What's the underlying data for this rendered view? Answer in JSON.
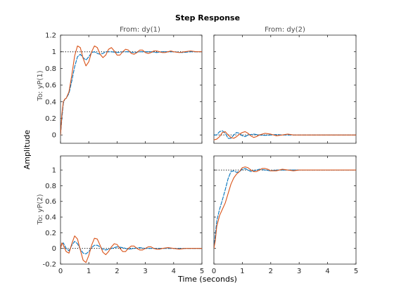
{
  "chart_data": {
    "type": "line",
    "title": "Step Response",
    "xlabel": "Time (seconds)",
    "ylabel": "Amplitude",
    "column_titles": [
      "From: dy(1)",
      "From: dy(2)"
    ],
    "row_titles": [
      "To: yP(1)",
      "To: yP(2)"
    ],
    "xlim": [
      0,
      5
    ],
    "x_ticks": [
      0,
      1,
      2,
      3,
      4,
      5
    ],
    "grid": false,
    "rows": [
      {
        "ylim": [
          -0.1,
          1.2
        ],
        "y_ticks": [
          0,
          0.2,
          0.4,
          0.6,
          0.8,
          1,
          1.2
        ],
        "y_tick_labels": [
          "0",
          "0.2",
          "0.4",
          "0.6",
          "0.8",
          "1",
          "1.2"
        ]
      },
      {
        "ylim": [
          -0.2,
          1.18
        ],
        "y_ticks": [
          -0.2,
          0,
          0.2,
          0.4,
          0.6,
          0.8,
          1
        ],
        "y_tick_labels": [
          "-0.2",
          "0",
          "0.2",
          "0.4",
          "0.6",
          "0.8",
          "1"
        ]
      }
    ],
    "reference_levels": [
      [
        1,
        0
      ],
      [
        0,
        1
      ]
    ],
    "series_colors": [
      "#0072bd",
      "#d95319"
    ],
    "reference_color": "#000000",
    "panels": [
      {
        "row": 0,
        "col": 0,
        "series": [
          {
            "x": [
              0,
              0.05,
              0.1,
              0.15,
              0.2,
              0.3,
              0.4,
              0.5,
              0.6,
              0.7,
              0.8,
              0.9,
              1.0,
              1.1,
              1.2,
              1.3,
              1.4,
              1.5,
              1.6,
              1.8,
              2.0,
              2.2,
              2.4,
              2.6,
              2.8,
              3.0,
              3.2,
              3.4,
              3.6,
              3.8,
              4.0,
              4.3,
              4.6,
              5.0
            ],
            "y": [
              0.0,
              0.2,
              0.38,
              0.43,
              0.44,
              0.5,
              0.65,
              0.82,
              0.94,
              0.97,
              0.93,
              0.9,
              0.94,
              0.99,
              1.0,
              0.98,
              0.97,
              0.98,
              1.0,
              1.0,
              0.99,
              1.0,
              1.0,
              0.99,
              1.0,
              1.0,
              1.0,
              0.99,
              1.0,
              1.0,
              1.0,
              0.99,
              1.0,
              1.0
            ]
          },
          {
            "x": [
              0,
              0.05,
              0.1,
              0.15,
              0.2,
              0.3,
              0.4,
              0.5,
              0.6,
              0.7,
              0.8,
              0.9,
              1.0,
              1.1,
              1.2,
              1.3,
              1.4,
              1.5,
              1.6,
              1.7,
              1.8,
              1.9,
              2.0,
              2.1,
              2.2,
              2.3,
              2.4,
              2.5,
              2.6,
              2.7,
              2.8,
              2.9,
              3.0,
              3.1,
              3.2,
              3.3,
              3.4,
              3.5,
              3.6,
              3.7,
              3.8,
              3.9,
              4.0,
              4.2,
              4.4,
              4.6,
              4.8,
              5.0
            ],
            "y": [
              0.0,
              0.25,
              0.4,
              0.43,
              0.44,
              0.52,
              0.72,
              0.95,
              1.07,
              1.05,
              0.92,
              0.83,
              0.88,
              1.0,
              1.07,
              1.05,
              0.97,
              0.93,
              0.96,
              1.03,
              1.05,
              1.01,
              0.96,
              0.96,
              1.0,
              1.03,
              1.02,
              0.98,
              0.97,
              0.99,
              1.02,
              1.02,
              0.99,
              0.98,
              0.99,
              1.01,
              1.01,
              1.0,
              0.99,
              0.99,
              1.0,
              1.01,
              1.0,
              0.99,
              1.0,
              1.01,
              1.0,
              1.0
            ]
          }
        ]
      },
      {
        "row": 0,
        "col": 1,
        "series": [
          {
            "x": [
              0,
              0.1,
              0.2,
              0.3,
              0.4,
              0.5,
              0.6,
              0.7,
              0.8,
              0.9,
              1.0,
              1.1,
              1.2,
              1.4,
              1.6,
              1.8,
              2.0,
              2.2,
              2.4,
              2.6,
              2.8,
              3.0,
              3.3,
              3.6,
              4.0,
              4.5,
              5.0
            ],
            "y": [
              0.0,
              0.0,
              0.04,
              0.05,
              0.02,
              -0.04,
              -0.04,
              0.0,
              0.03,
              0.02,
              -0.01,
              -0.02,
              0.0,
              0.01,
              0.0,
              -0.005,
              0.0,
              0.005,
              0.0,
              0.0,
              0.0,
              0.0,
              0.0,
              0.0,
              0.0,
              0.0,
              0.0
            ]
          },
          {
            "x": [
              0,
              0.1,
              0.2,
              0.3,
              0.4,
              0.5,
              0.6,
              0.7,
              0.8,
              0.9,
              1.0,
              1.1,
              1.2,
              1.3,
              1.4,
              1.5,
              1.6,
              1.8,
              2.0,
              2.2,
              2.4,
              2.6,
              2.8,
              3.0,
              3.4,
              3.8,
              4.2,
              4.6,
              5.0
            ],
            "y": [
              -0.06,
              -0.05,
              -0.02,
              0.03,
              0.04,
              0.0,
              -0.03,
              -0.04,
              -0.02,
              0.01,
              0.03,
              0.04,
              0.02,
              -0.01,
              -0.03,
              -0.02,
              0.0,
              0.02,
              0.01,
              -0.01,
              0.0,
              0.01,
              0.0,
              0.0,
              0.0,
              0.0,
              0.0,
              0.0,
              0.0
            ]
          }
        ]
      },
      {
        "row": 1,
        "col": 0,
        "series": [
          {
            "x": [
              0,
              0.05,
              0.1,
              0.2,
              0.3,
              0.4,
              0.5,
              0.6,
              0.7,
              0.8,
              0.9,
              1.0,
              1.1,
              1.2,
              1.3,
              1.4,
              1.5,
              1.6,
              1.8,
              2.0,
              2.2,
              2.4,
              2.6,
              2.8,
              3.0,
              3.3,
              3.6,
              4.0,
              4.5,
              5.0
            ],
            "y": [
              0.0,
              0.06,
              0.07,
              0.0,
              -0.03,
              0.04,
              0.09,
              0.06,
              -0.01,
              -0.06,
              -0.07,
              -0.04,
              0.01,
              0.04,
              0.04,
              0.02,
              -0.01,
              -0.02,
              0.0,
              0.02,
              0.01,
              -0.01,
              0.0,
              0.01,
              0.0,
              0.0,
              0.0,
              0.0,
              0.0,
              0.0
            ]
          },
          {
            "x": [
              0,
              0.05,
              0.1,
              0.2,
              0.3,
              0.4,
              0.5,
              0.6,
              0.7,
              0.8,
              0.9,
              1.0,
              1.1,
              1.2,
              1.3,
              1.4,
              1.5,
              1.6,
              1.7,
              1.8,
              1.9,
              2.0,
              2.1,
              2.2,
              2.3,
              2.4,
              2.5,
              2.6,
              2.7,
              2.8,
              2.9,
              3.0,
              3.1,
              3.2,
              3.3,
              3.4,
              3.5,
              3.6,
              3.8,
              4.0,
              4.2,
              4.4,
              4.6,
              4.8,
              5.0
            ],
            "y": [
              0.0,
              0.07,
              0.04,
              -0.04,
              -0.06,
              0.06,
              0.16,
              0.12,
              -0.02,
              -0.15,
              -0.18,
              -0.09,
              0.04,
              0.13,
              0.12,
              0.04,
              -0.05,
              -0.08,
              -0.04,
              0.02,
              0.06,
              0.05,
              0.0,
              -0.04,
              -0.04,
              0.0,
              0.03,
              0.03,
              0.0,
              -0.02,
              -0.02,
              0.0,
              0.02,
              0.02,
              0.0,
              -0.01,
              -0.01,
              0.0,
              0.01,
              0.0,
              -0.01,
              0.0,
              0.0,
              0.0,
              0.0
            ]
          }
        ]
      },
      {
        "row": 1,
        "col": 1,
        "series": [
          {
            "x": [
              0,
              0.05,
              0.1,
              0.2,
              0.3,
              0.4,
              0.5,
              0.6,
              0.7,
              0.8,
              0.9,
              1.0,
              1.1,
              1.2,
              1.3,
              1.4,
              1.5,
              1.6,
              1.8,
              2.0,
              2.2,
              2.4,
              2.6,
              2.8,
              3.0,
              3.4,
              3.8,
              4.2,
              4.6,
              5.0
            ],
            "y": [
              0.0,
              0.18,
              0.35,
              0.5,
              0.62,
              0.75,
              0.89,
              0.98,
              0.99,
              0.97,
              0.98,
              1.01,
              1.02,
              1.0,
              0.98,
              0.99,
              1.0,
              1.01,
              1.0,
              0.99,
              1.0,
              1.0,
              1.0,
              1.0,
              1.0,
              1.0,
              1.0,
              1.0,
              1.0,
              1.0
            ]
          },
          {
            "x": [
              0,
              0.05,
              0.1,
              0.2,
              0.3,
              0.4,
              0.5,
              0.6,
              0.7,
              0.8,
              0.9,
              1.0,
              1.1,
              1.2,
              1.3,
              1.4,
              1.5,
              1.6,
              1.7,
              1.8,
              1.9,
              2.0,
              2.2,
              2.4,
              2.6,
              2.8,
              3.0,
              3.2,
              3.5,
              4.0,
              4.5,
              5.0
            ],
            "y": [
              0.0,
              0.1,
              0.28,
              0.42,
              0.5,
              0.58,
              0.7,
              0.82,
              0.9,
              0.95,
              0.98,
              1.03,
              1.04,
              1.03,
              1.0,
              0.98,
              0.98,
              1.0,
              1.02,
              1.02,
              1.01,
              0.99,
              0.99,
              1.01,
              1.0,
              0.99,
              1.0,
              1.0,
              1.0,
              1.0,
              1.0,
              1.0
            ]
          }
        ]
      }
    ]
  }
}
